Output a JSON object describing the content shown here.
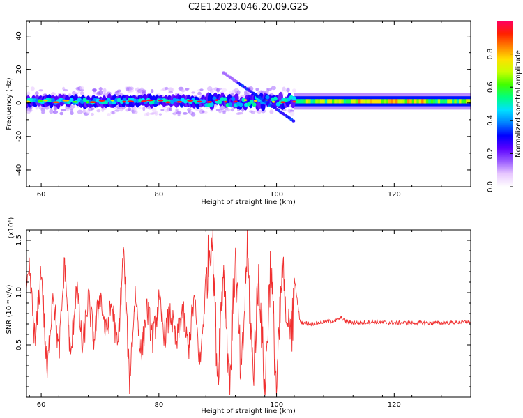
{
  "title": "C2E1.2023.046.20.09.G25",
  "chart_data": [
    {
      "type": "heatmap",
      "xlabel": "Height of straight line (km)",
      "ylabel": "Frequency (Hz)",
      "xlim": [
        57.5,
        133
      ],
      "ylim": [
        -50,
        49
      ],
      "xticks": [
        60,
        80,
        100,
        120
      ],
      "yticks": [
        -40,
        -20,
        0,
        20,
        40
      ],
      "colorbar": {
        "label": "Normalized spectral amplitude",
        "range": [
          0,
          1
        ],
        "ticks": [
          "0.0",
          "0.2",
          "0.4",
          "0.6",
          "0.8"
        ],
        "colormap": [
          "#ffffff",
          "#e8c8ff",
          "#9a5cff",
          "#5a00ff",
          "#0000ff",
          "#0080ff",
          "#00e0ff",
          "#00ff80",
          "#40ff00",
          "#c8ff00",
          "#ffe000",
          "#ff8000",
          "#ff2000",
          "#ff0060"
        ]
      },
      "band": {
        "center_hz": 1,
        "noisy_region_km": [
          57.5,
          103
        ],
        "smooth_region_km": [
          103,
          133
        ],
        "diagonal_feature": {
          "from": [
            91,
            18
          ],
          "to": [
            103,
            -11
          ]
        }
      },
      "grid": false
    },
    {
      "type": "line",
      "xlabel": "Height of straight line (km)",
      "ylabel": "SNR (10 * v/v)",
      "yscale_note": "(x10⁴)",
      "xlim": [
        57.5,
        133
      ],
      "ylim": [
        0,
        1.6
      ],
      "xticks": [
        60,
        80,
        100,
        120
      ],
      "yticks": [
        "0.5",
        "1.0",
        "1.5"
      ],
      "line_color": "#f03030",
      "series_anchors": {
        "x": [
          57.5,
          58,
          59,
          60,
          61,
          62,
          63,
          64,
          65,
          66,
          67,
          68,
          69,
          70,
          71,
          72,
          73,
          74,
          75,
          76,
          77,
          78,
          79,
          80,
          81,
          82,
          83,
          84,
          85,
          86,
          87,
          88,
          89,
          90,
          91,
          92,
          93,
          94,
          95,
          96,
          97,
          98,
          99,
          100,
          101,
          102,
          103,
          104,
          106,
          108,
          110,
          111,
          112,
          114,
          116,
          120,
          124,
          128,
          133
        ],
        "y": [
          0.95,
          1.2,
          0.5,
          1.25,
          0.2,
          1.05,
          0.4,
          1.3,
          0.35,
          1.1,
          0.45,
          0.95,
          0.55,
          1.0,
          0.6,
          0.9,
          0.45,
          1.4,
          0.15,
          1.0,
          0.4,
          0.85,
          0.55,
          0.9,
          0.6,
          0.8,
          0.5,
          0.85,
          0.45,
          0.95,
          0.3,
          1.1,
          1.6,
          0.2,
          1.3,
          0.1,
          1.35,
          0.1,
          1.45,
          0.2,
          1.2,
          0.05,
          1.3,
          0.05,
          1.25,
          0.4,
          1.15,
          0.72,
          0.7,
          0.72,
          0.73,
          0.76,
          0.72,
          0.71,
          0.72,
          0.71,
          0.71,
          0.71,
          0.72
        ]
      },
      "grid": false
    }
  ]
}
